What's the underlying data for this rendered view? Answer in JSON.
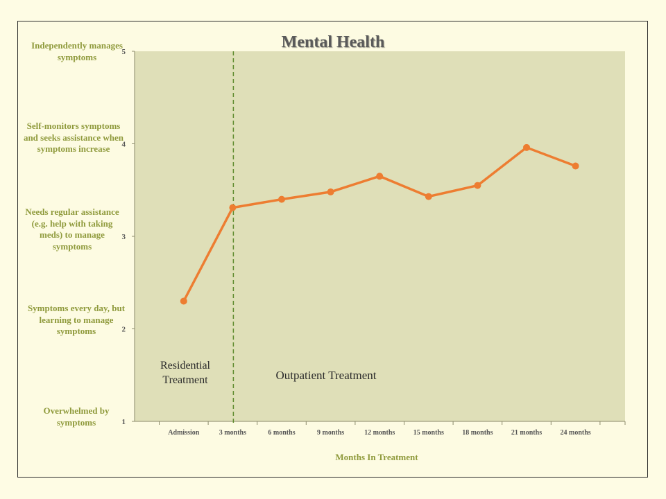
{
  "chart_data": {
    "type": "line",
    "title": "Mental Health",
    "xlabel": "Months In Treatment",
    "ylabel": "",
    "categories": [
      "Admission",
      "3 months",
      "6 months",
      "9 months",
      "12 months",
      "15 months",
      "18 months",
      "21 months",
      "24 months"
    ],
    "series": [
      {
        "values": [
          2.3,
          3.31,
          3.4,
          3.48,
          3.65,
          3.43,
          3.55,
          3.96,
          3.76
        ]
      }
    ],
    "ylim": [
      1,
      5
    ],
    "y_ticks": [
      "1",
      "2",
      "3",
      "4",
      "5"
    ],
    "y_level_labels": [
      "Overwhelmed by symptoms",
      "Symptoms every day, but learning to manage symptoms",
      "Needs regular assistance (e.g. help with taking meds) to manage symptoms",
      "Self-monitors symptoms and seeks assistance when symptoms increase",
      "Independently manages symptoms"
    ],
    "annotations": [
      "Residential Treatment",
      "Outpatient Treatment"
    ],
    "divider_after_category": "3 months",
    "grid": false,
    "legend": "none"
  },
  "colors": {
    "background": "#fefce4",
    "plot_area": "#dfdfb8",
    "line": "#ed7d31",
    "axis_text": "#8f9a3c",
    "divider": "#5e8a2d"
  }
}
